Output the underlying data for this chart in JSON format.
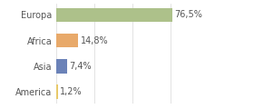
{
  "categories": [
    "Europa",
    "Africa",
    "Asia",
    "America"
  ],
  "values": [
    76.5,
    14.8,
    7.4,
    1.2
  ],
  "labels": [
    "76,5%",
    "14,8%",
    "7,4%",
    "1,2%"
  ],
  "bar_colors": [
    "#adc18a",
    "#e8a96a",
    "#6b82b8",
    "#e8c96a"
  ],
  "background_color": "#ffffff",
  "grid_color": "#d8d8d8",
  "text_color": "#555555",
  "xlim": [
    0,
    100
  ],
  "label_fontsize": 7.0,
  "tick_fontsize": 7.0,
  "bar_height": 0.55
}
